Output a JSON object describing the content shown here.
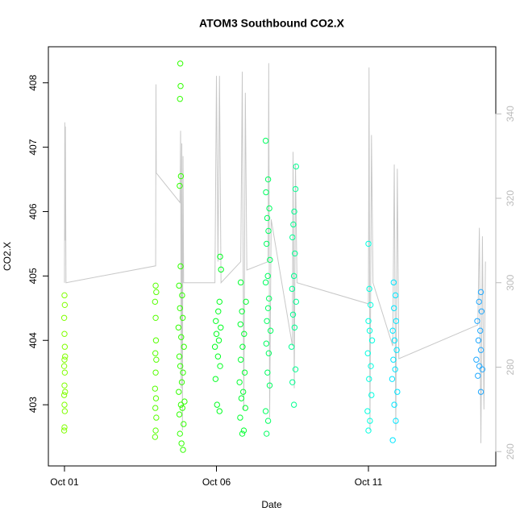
{
  "chart_data": {
    "type": "scatter",
    "title": "ATOM3 Southbound CO2.X",
    "x_label": "Date",
    "y_label": "CO2.X",
    "xlim": [
      0.47,
      15.19
    ],
    "ylim": [
      402.05,
      408.56
    ],
    "y2lim": [
      256.6,
      355.9
    ],
    "xticks": [
      {
        "value": 1,
        "label": "Oct 01"
      },
      {
        "value": 6,
        "label": "Oct 06"
      },
      {
        "value": 11,
        "label": "Oct 11"
      }
    ],
    "yticks": [
      403,
      404,
      405,
      406,
      407,
      408
    ],
    "y2ticks": [
      260,
      280,
      300,
      320,
      340
    ],
    "series": [
      {
        "color": "#80ff00",
        "x": [
          0.99,
          1.0,
          1.01,
          1.0,
          0.99,
          1.02,
          1.0,
          1.01,
          0.99,
          1.0,
          1.02,
          1.01,
          1.0,
          0.99,
          1.01,
          1.0
        ],
        "values": [
          402.6,
          402.65,
          402.9,
          403.0,
          403.15,
          403.2,
          403.3,
          403.5,
          403.6,
          403.7,
          403.75,
          403.9,
          404.1,
          404.35,
          404.55,
          404.7
        ]
      },
      {
        "color": "#55ff00",
        "x": [
          3.98,
          4.0,
          4.02,
          3.99,
          4.01,
          3.98,
          4.0,
          4.02,
          3.99,
          4.01,
          4.0,
          3.98,
          4.02,
          4.0
        ],
        "values": [
          402.5,
          402.6,
          402.8,
          402.95,
          403.1,
          403.25,
          403.5,
          403.7,
          403.8,
          404.0,
          404.35,
          404.6,
          404.75,
          404.85
        ]
      },
      {
        "color": "#30ff00",
        "x": [
          4.9,
          4.85,
          4.8,
          4.92,
          4.78,
          4.88,
          4.83,
          4.95,
          4.76,
          4.86,
          4.9,
          4.81,
          4.78,
          4.93,
          4.84,
          4.75,
          4.89,
          4.8,
          4.87,
          4.77,
          4.82,
          4.79,
          4.83,
          4.8,
          4.82,
          4.81
        ],
        "values": [
          402.3,
          402.4,
          402.55,
          402.7,
          402.85,
          402.95,
          403.0,
          403.05,
          403.2,
          403.35,
          403.5,
          403.6,
          403.75,
          403.9,
          404.05,
          404.2,
          404.35,
          404.5,
          404.7,
          404.85,
          405.15,
          406.4,
          406.55,
          407.75,
          407.95,
          408.3
        ]
      },
      {
        "color": "#00ff20",
        "x": [
          6.1,
          6.02,
          5.97,
          6.12,
          6.05,
          5.95,
          6.08,
          6.0,
          6.14,
          5.98,
          6.06,
          6.1,
          6.15,
          6.12
        ],
        "values": [
          402.9,
          403.0,
          403.4,
          403.6,
          403.75,
          403.9,
          404.0,
          404.1,
          404.2,
          404.3,
          404.45,
          404.6,
          405.1,
          405.3
        ]
      },
      {
        "color": "#00ff30",
        "x": [
          6.85,
          6.9,
          6.78,
          6.95,
          6.82,
          6.88,
          6.76,
          6.93,
          6.8,
          6.86,
          6.91,
          6.79,
          6.84,
          6.97,
          6.8
        ],
        "values": [
          402.55,
          402.6,
          402.8,
          402.95,
          403.1,
          403.2,
          403.35,
          403.5,
          403.7,
          403.9,
          404.1,
          404.25,
          404.45,
          404.6,
          404.9
        ]
      },
      {
        "color": "#00ff60",
        "x": [
          7.65,
          7.7,
          7.62,
          7.75,
          7.68,
          7.72,
          7.64,
          7.78,
          7.66,
          7.7,
          7.73,
          7.62,
          7.69,
          7.76,
          7.65,
          7.71,
          7.67,
          7.74,
          7.63,
          7.7,
          7.62
        ],
        "values": [
          402.55,
          402.75,
          402.9,
          403.3,
          403.5,
          403.8,
          403.95,
          404.15,
          404.3,
          404.5,
          404.65,
          404.9,
          405.0,
          405.25,
          405.5,
          405.7,
          405.9,
          406.05,
          406.3,
          406.5,
          407.1
        ]
      },
      {
        "color": "#00ff90",
        "x": [
          8.55,
          8.5,
          8.6,
          8.47,
          8.57,
          8.52,
          8.62,
          8.49,
          8.55,
          8.58,
          8.5,
          8.53,
          8.56,
          8.6,
          8.62
        ],
        "values": [
          403.0,
          403.35,
          403.55,
          403.9,
          404.2,
          404.4,
          404.6,
          404.8,
          405.0,
          405.35,
          405.6,
          405.8,
          406.0,
          406.35,
          406.7
        ]
      },
      {
        "color": "#00ffe0",
        "x": [
          11.0,
          11.05,
          10.97,
          11.1,
          11.02,
          11.08,
          10.98,
          11.12,
          11.04,
          11.0,
          11.07,
          11.03,
          11.0
        ],
        "values": [
          402.6,
          402.75,
          402.9,
          403.15,
          403.4,
          403.6,
          403.8,
          404.0,
          404.15,
          404.3,
          404.55,
          404.8,
          405.5
        ]
      },
      {
        "color": "#00e5ff",
        "x": [
          11.8,
          11.9,
          11.85,
          11.95,
          11.78,
          11.88,
          11.82,
          11.93,
          11.86,
          11.8,
          11.91,
          11.84,
          11.89,
          11.83
        ],
        "values": [
          402.45,
          402.75,
          403.0,
          403.2,
          403.4,
          403.55,
          403.7,
          403.85,
          404.0,
          404.15,
          404.3,
          404.5,
          404.7,
          404.9
        ]
      },
      {
        "color": "#1ea8ff",
        "x": [
          14.7,
          14.6,
          14.75,
          14.65,
          14.55,
          14.7,
          14.62,
          14.68,
          14.58,
          14.72,
          14.64,
          14.7
        ],
        "values": [
          403.2,
          403.45,
          403.55,
          403.6,
          403.7,
          403.85,
          404.0,
          404.15,
          404.3,
          404.45,
          404.6,
          404.75
        ]
      },
      {
        "type": "line",
        "axis": "y2",
        "color": "#c8c8c8",
        "x": [
          1.0,
          1.01,
          1.02,
          1.03,
          1.05,
          4.0,
          4.01,
          4.02,
          4.8,
          4.82,
          4.84,
          4.86,
          4.88,
          4.9,
          4.92,
          5.95,
          6.0,
          6.05,
          6.1,
          6.15,
          6.8,
          6.85,
          6.9,
          6.95,
          7.0,
          7.7,
          7.72,
          7.75,
          7.8,
          8.5,
          8.52,
          8.56,
          8.6,
          8.65,
          11.0,
          11.02,
          11.05,
          11.1,
          11.15,
          11.8,
          11.85,
          11.9,
          11.95,
          12.0,
          14.6,
          14.65,
          14.7,
          14.75,
          14.8,
          14.85
        ],
        "values": [
          300,
          338,
          310,
          337,
          300,
          304,
          347,
          326,
          319,
          336,
          275,
          333,
          265,
          330,
          300,
          300,
          349,
          305,
          349,
          300,
          305,
          350,
          270,
          345,
          303,
          305,
          352,
          268,
          315,
          285,
          331,
          275,
          328,
          300,
          295,
          351,
          265,
          335,
          300,
          285,
          328,
          265,
          327,
          282,
          290,
          313,
          262,
          311,
          270,
          305
        ]
      }
    ]
  }
}
